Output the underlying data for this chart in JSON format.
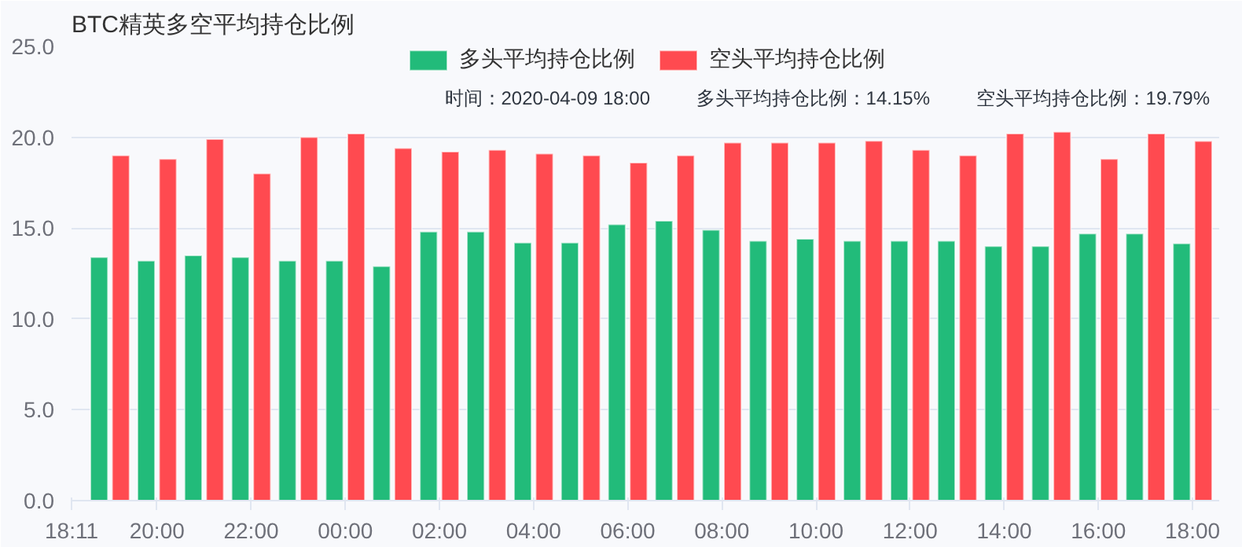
{
  "chart_data": {
    "type": "bar",
    "title": "BTC精英多空平均持仓比例",
    "x": [
      "2020-04-08T19:00",
      "2020-04-08T20:00",
      "2020-04-08T21:00",
      "2020-04-08T22:00",
      "2020-04-08T23:00",
      "2020-04-09T00:00",
      "2020-04-09T01:00",
      "2020-04-09T02:00",
      "2020-04-09T03:00",
      "2020-04-09T04:00",
      "2020-04-09T05:00",
      "2020-04-09T06:00",
      "2020-04-09T07:00",
      "2020-04-09T08:00",
      "2020-04-09T09:00",
      "2020-04-09T10:00",
      "2020-04-09T11:00",
      "2020-04-09T12:00",
      "2020-04-09T13:00",
      "2020-04-09T14:00",
      "2020-04-09T15:00",
      "2020-04-09T16:00",
      "2020-04-09T17:00",
      "2020-04-09T18:00"
    ],
    "series": [
      {
        "name": "多头平均持仓比例",
        "color": "#22bb7a",
        "values": [
          13.4,
          13.2,
          13.5,
          13.4,
          13.2,
          13.2,
          12.9,
          14.8,
          14.8,
          14.2,
          14.2,
          15.2,
          15.4,
          14.9,
          14.3,
          14.4,
          14.3,
          14.3,
          14.3,
          14.0,
          14.0,
          14.7,
          14.7,
          14.15
        ]
      },
      {
        "name": "空头平均持仓比例",
        "color": "#ff4a50",
        "values": [
          19.0,
          18.8,
          19.9,
          18.0,
          20.0,
          20.2,
          19.4,
          19.2,
          19.3,
          19.1,
          19.0,
          18.6,
          19.0,
          19.7,
          19.7,
          19.7,
          19.8,
          19.3,
          19.0,
          20.2,
          20.3,
          18.8,
          20.2,
          19.79
        ]
      }
    ],
    "xlim": [
      "2020-04-08T18:11",
      "2020-04-09T18:34"
    ],
    "xticks": [
      {
        "value": "2020-04-08T18:11",
        "label": "18:11"
      },
      {
        "value": "2020-04-08T20:00",
        "label": "20:00"
      },
      {
        "value": "2020-04-08T22:00",
        "label": "22:00"
      },
      {
        "value": "2020-04-09T00:00",
        "label": "00:00"
      },
      {
        "value": "2020-04-09T02:00",
        "label": "02:00"
      },
      {
        "value": "2020-04-09T04:00",
        "label": "04:00"
      },
      {
        "value": "2020-04-09T06:00",
        "label": "06:00"
      },
      {
        "value": "2020-04-09T08:00",
        "label": "08:00"
      },
      {
        "value": "2020-04-09T10:00",
        "label": "10:00"
      },
      {
        "value": "2020-04-09T12:00",
        "label": "12:00"
      },
      {
        "value": "2020-04-09T14:00",
        "label": "14:00"
      },
      {
        "value": "2020-04-09T16:00",
        "label": "16:00"
      },
      {
        "value": "2020-04-09T18:00",
        "label": "18:00"
      }
    ],
    "ylim": [
      0,
      25
    ],
    "yticks": [
      {
        "value": 0,
        "label": "0.0"
      },
      {
        "value": 5,
        "label": "5.0"
      },
      {
        "value": 10,
        "label": "10.0"
      },
      {
        "value": 15,
        "label": "15.0"
      },
      {
        "value": 20,
        "label": "20.0"
      },
      {
        "value": 25,
        "label": "25.0"
      }
    ],
    "grid": "y",
    "legend": "top",
    "annotations": [
      "时间：2020-04-09 18:00",
      "多头平均持仓比例：14.15%",
      "空头平均持仓比例：19.79%"
    ]
  }
}
